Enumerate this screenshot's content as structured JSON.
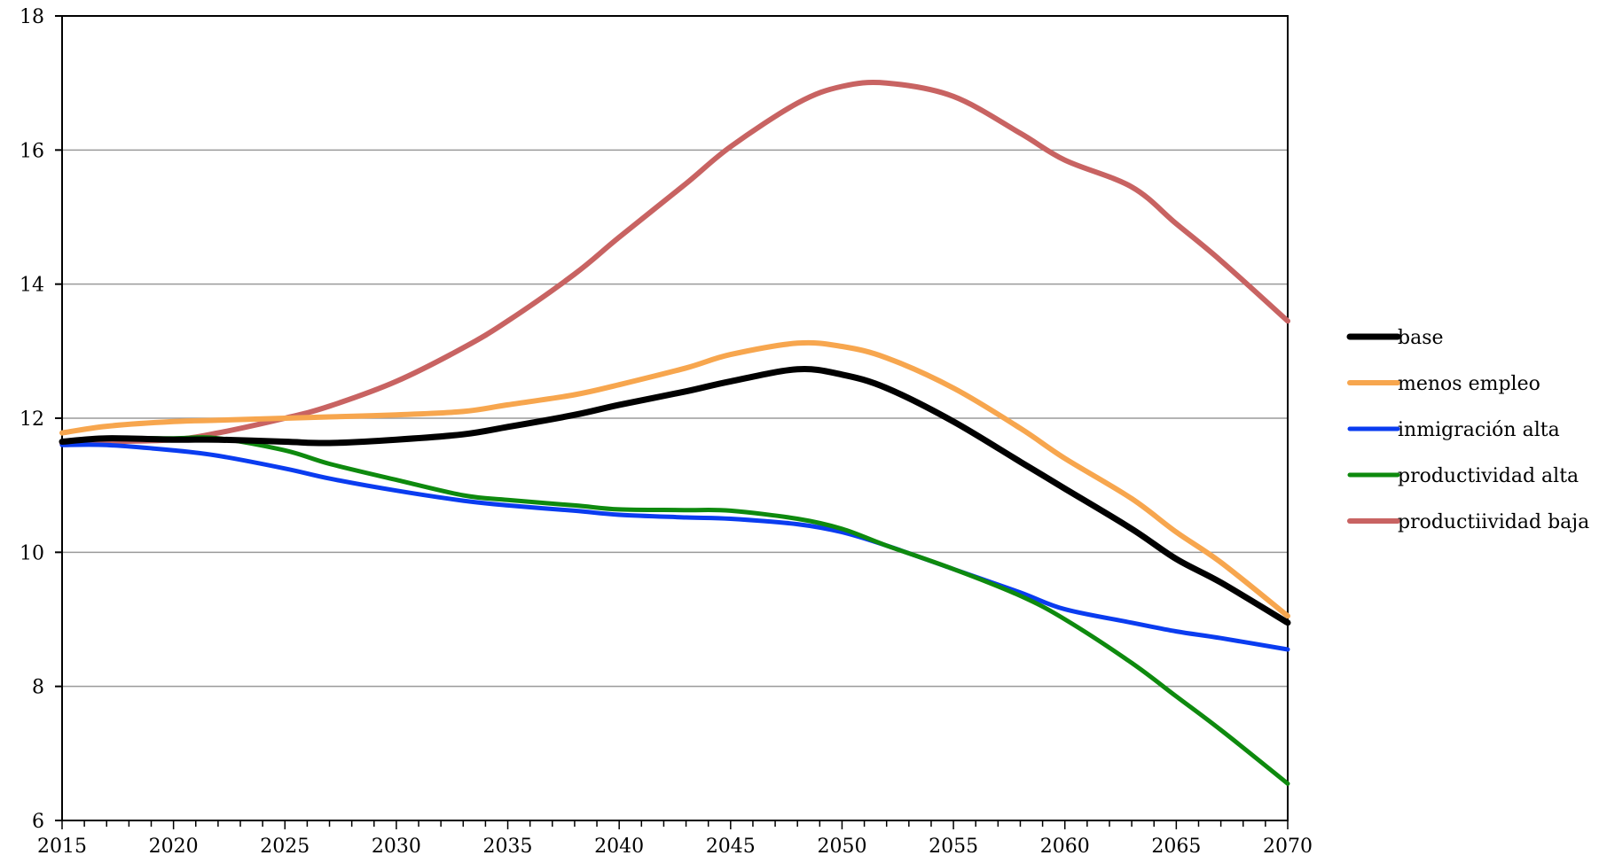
{
  "chart_data": {
    "type": "line",
    "title": "",
    "xlabel": "",
    "ylabel": "",
    "xlim": [
      2015,
      2070
    ],
    "ylim": [
      6,
      18
    ],
    "yticks": [
      6,
      8,
      10,
      12,
      14,
      16,
      18
    ],
    "xticks": [
      2015,
      2020,
      2025,
      2030,
      2035,
      2040,
      2045,
      2050,
      2055,
      2060,
      2065,
      2070
    ],
    "grid": "horizontal",
    "legend_position": "right",
    "x": [
      2015,
      2017,
      2020,
      2022,
      2025,
      2027,
      2030,
      2033,
      2035,
      2038,
      2040,
      2043,
      2045,
      2048,
      2050,
      2052,
      2055,
      2058,
      2060,
      2063,
      2065,
      2067,
      2070
    ],
    "series": [
      {
        "name": "base",
        "color": "#000000",
        "width": 7,
        "values": [
          11.65,
          11.7,
          11.68,
          11.68,
          11.65,
          11.63,
          11.68,
          11.76,
          11.87,
          12.05,
          12.2,
          12.4,
          12.55,
          12.73,
          12.65,
          12.45,
          11.95,
          11.35,
          10.95,
          10.35,
          9.9,
          9.55,
          8.95
        ]
      },
      {
        "name": "menos empleo",
        "color": "#F7A64E",
        "width": 6,
        "values": [
          11.78,
          11.88,
          11.95,
          11.97,
          12.0,
          12.02,
          12.05,
          12.1,
          12.2,
          12.35,
          12.5,
          12.75,
          12.95,
          13.12,
          13.07,
          12.9,
          12.45,
          11.85,
          11.4,
          10.8,
          10.3,
          9.85,
          9.05
        ]
      },
      {
        "name": "inmigración alta",
        "color": "#0A3CF0",
        "width": 5,
        "values": [
          11.6,
          11.6,
          11.52,
          11.44,
          11.25,
          11.1,
          10.92,
          10.77,
          10.7,
          10.62,
          10.56,
          10.52,
          10.5,
          10.42,
          10.3,
          10.1,
          9.75,
          9.4,
          9.15,
          8.95,
          8.82,
          8.72,
          8.55
        ]
      },
      {
        "name": "productividad alta",
        "color": "#0E8A0E",
        "width": 5,
        "values": [
          11.65,
          11.7,
          11.7,
          11.7,
          11.52,
          11.32,
          11.08,
          10.85,
          10.78,
          10.7,
          10.64,
          10.63,
          10.62,
          10.5,
          10.35,
          10.1,
          9.75,
          9.35,
          9.0,
          8.35,
          7.85,
          7.35,
          6.55
        ]
      },
      {
        "name": "productiividad baja",
        "color": "#C86362",
        "width": 6,
        "values": [
          11.62,
          11.65,
          11.68,
          11.78,
          12.0,
          12.18,
          12.55,
          13.05,
          13.45,
          14.15,
          14.7,
          15.5,
          16.05,
          16.7,
          16.95,
          17.0,
          16.8,
          16.25,
          15.85,
          15.45,
          14.9,
          14.35,
          13.45
        ]
      }
    ]
  }
}
